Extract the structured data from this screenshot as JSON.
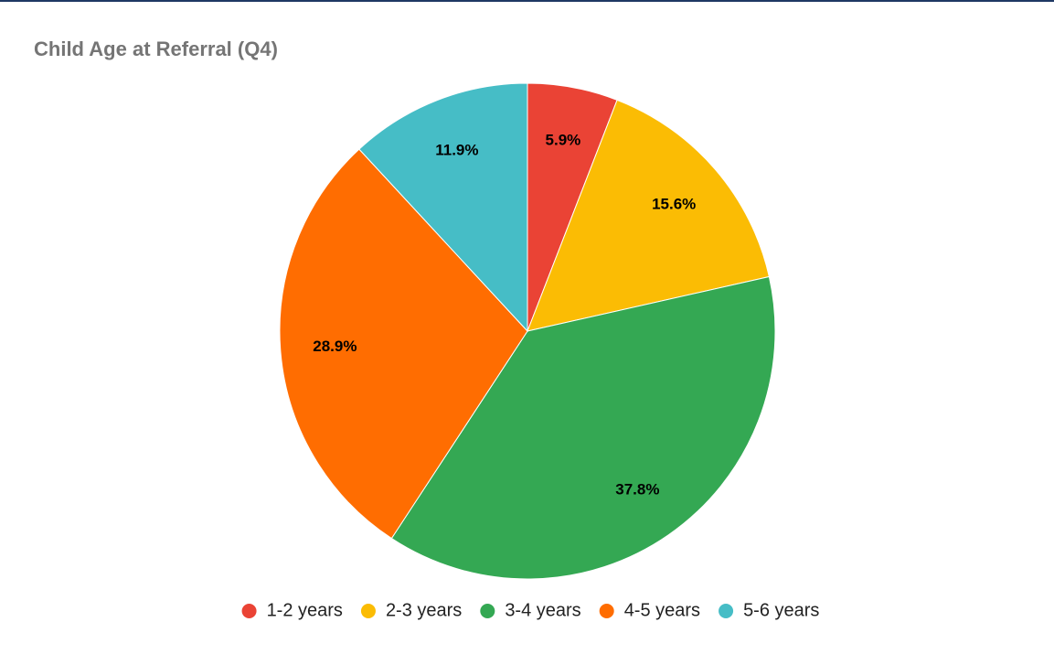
{
  "chart_data": {
    "type": "pie",
    "title": "Child Age at Referral (Q4)",
    "categories": [
      "1-2 years",
      "2-3 years",
      "3-4 years",
      "4-5 years",
      "5-6 years"
    ],
    "values": [
      5.9,
      15.6,
      37.8,
      28.9,
      11.9
    ],
    "value_labels": [
      "5.9%",
      "15.6%",
      "37.8%",
      "28.9%",
      "11.9%"
    ],
    "colors": [
      "#ea4335",
      "#fbbc04",
      "#34a853",
      "#ff6d01",
      "#46bdc6"
    ],
    "legend": "bottom"
  }
}
